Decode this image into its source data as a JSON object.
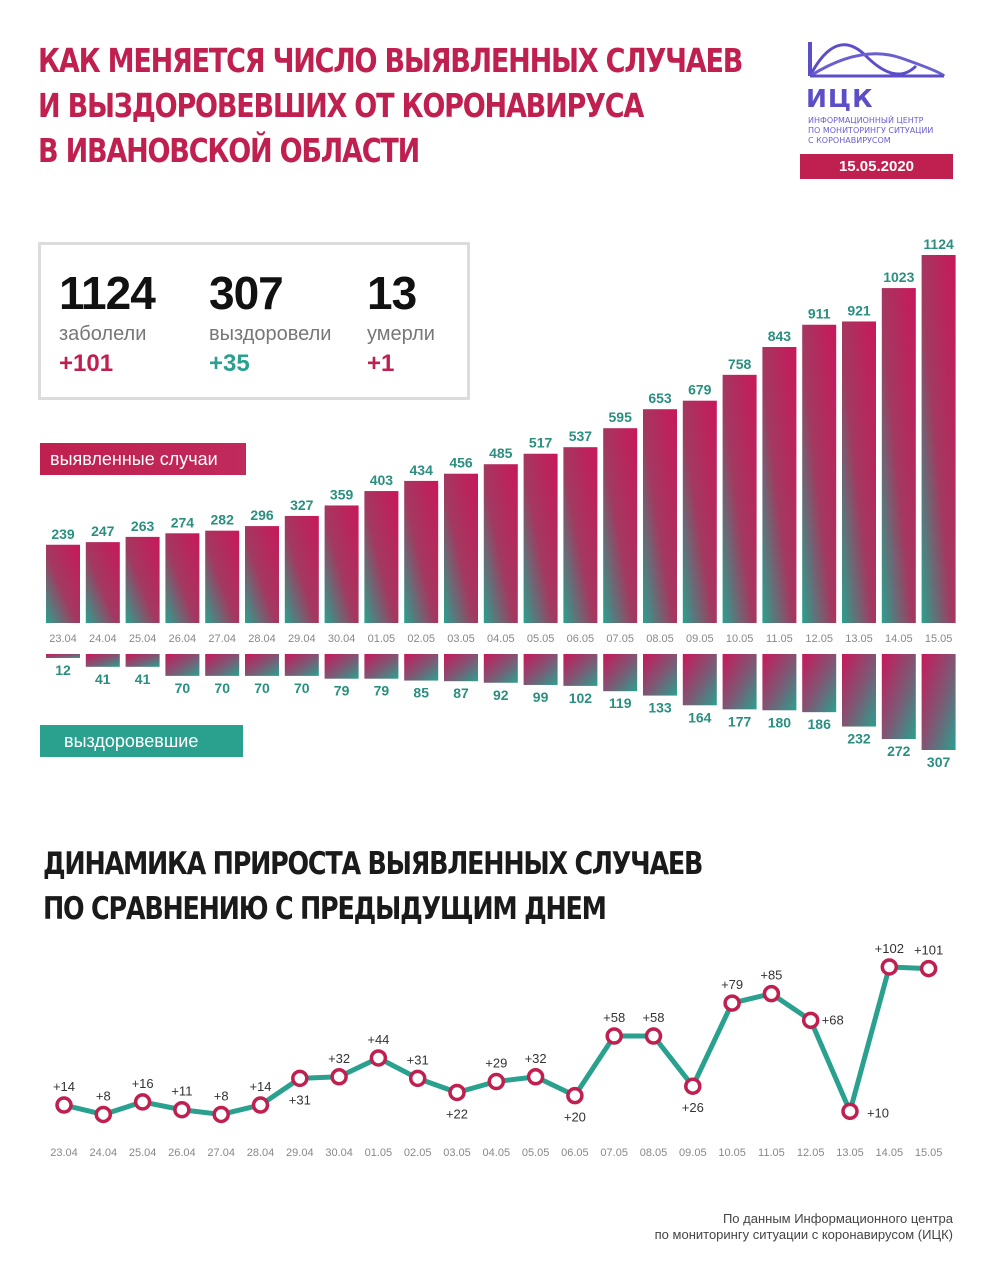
{
  "header": {
    "title_lines": [
      "КАК МЕНЯЕТСЯ ЧИСЛО ВЫЯВЛЕННЫХ СЛУЧАЕВ",
      "И ВЫЗДОРОВЕВШИХ ОТ КОРОНАВИРУСА",
      "В ИВАНОВСКОЙ ОБЛАСТИ"
    ]
  },
  "logo": {
    "name": "ИЦК",
    "subtitle_lines": [
      "Информационный центр",
      "по мониторингу ситуации",
      "с коронавирусом"
    ],
    "date": "15.05.2020"
  },
  "stats": [
    {
      "value": "1124",
      "label": "заболели",
      "delta": "+101",
      "color": "#c0204f"
    },
    {
      "value": "307",
      "label": "выздоровели",
      "delta": "+35",
      "color": "#2aa18f"
    },
    {
      "value": "13",
      "label": "умерли",
      "delta": "+1",
      "color": "#c0204f"
    }
  ],
  "legend": {
    "cases_label": "выявленные случаи",
    "recovered_label": "выздоровевшие"
  },
  "subtitle_lines": [
    "ДИНАМИКА ПРИРОСТА ВЫЯВЛЕННЫХ СЛУЧАЕВ",
    "ПО СРАВНЕНИЮ С ПРЕДЫДУЩИМ ДНЕМ"
  ],
  "colors": {
    "accent": "#c0204f",
    "teal": "#2aa18f",
    "logo": "#5b4ec8"
  },
  "chart_data": [
    {
      "type": "bar",
      "categories": [
        "23.04",
        "24.04",
        "25.04",
        "26.04",
        "27.04",
        "28.04",
        "29.04",
        "30.04",
        "01.05",
        "02.05",
        "03.05",
        "04.05",
        "05.05",
        "06.05",
        "07.05",
        "08.05",
        "09.05",
        "10.05",
        "11.05",
        "12.05",
        "13.05",
        "14.05",
        "15.05"
      ],
      "series": [
        {
          "name": "выявленные случаи",
          "values": [
            239,
            247,
            263,
            274,
            282,
            296,
            327,
            359,
            403,
            434,
            456,
            485,
            517,
            537,
            595,
            653,
            679,
            758,
            843,
            911,
            921,
            1023,
            1124
          ]
        },
        {
          "name": "выздоровевшие",
          "values": [
            12,
            41,
            41,
            70,
            70,
            70,
            70,
            79,
            79,
            85,
            87,
            92,
            99,
            102,
            119,
            133,
            164,
            177,
            180,
            186,
            232,
            272,
            307
          ]
        }
      ]
    },
    {
      "type": "line",
      "categories": [
        "23.04",
        "24.04",
        "25.04",
        "26.04",
        "27.04",
        "28.04",
        "29.04",
        "30.04",
        "01.05",
        "02.05",
        "03.05",
        "04.05",
        "05.05",
        "06.05",
        "07.05",
        "08.05",
        "09.05",
        "10.05",
        "11.05",
        "12.05",
        "13.05",
        "14.05",
        "15.05"
      ],
      "values": [
        14,
        8,
        16,
        11,
        8,
        14,
        31,
        32,
        44,
        31,
        22,
        29,
        32,
        20,
        58,
        58,
        26,
        79,
        85,
        68,
        10,
        102,
        101
      ],
      "labels": [
        "+14",
        "+8",
        "+16",
        "+11",
        "+8",
        "+14",
        "+31",
        "+32",
        "+44",
        "+31",
        "+22",
        "+29",
        "+32",
        "+20",
        "+58",
        "+58",
        "+26",
        "+79",
        "+85",
        "+68",
        "+10",
        "+102",
        "+101"
      ]
    }
  ],
  "source_lines": [
    "По данным Информационного центра",
    "по мониторингу ситуации с коронавирусом (ИЦК)"
  ]
}
